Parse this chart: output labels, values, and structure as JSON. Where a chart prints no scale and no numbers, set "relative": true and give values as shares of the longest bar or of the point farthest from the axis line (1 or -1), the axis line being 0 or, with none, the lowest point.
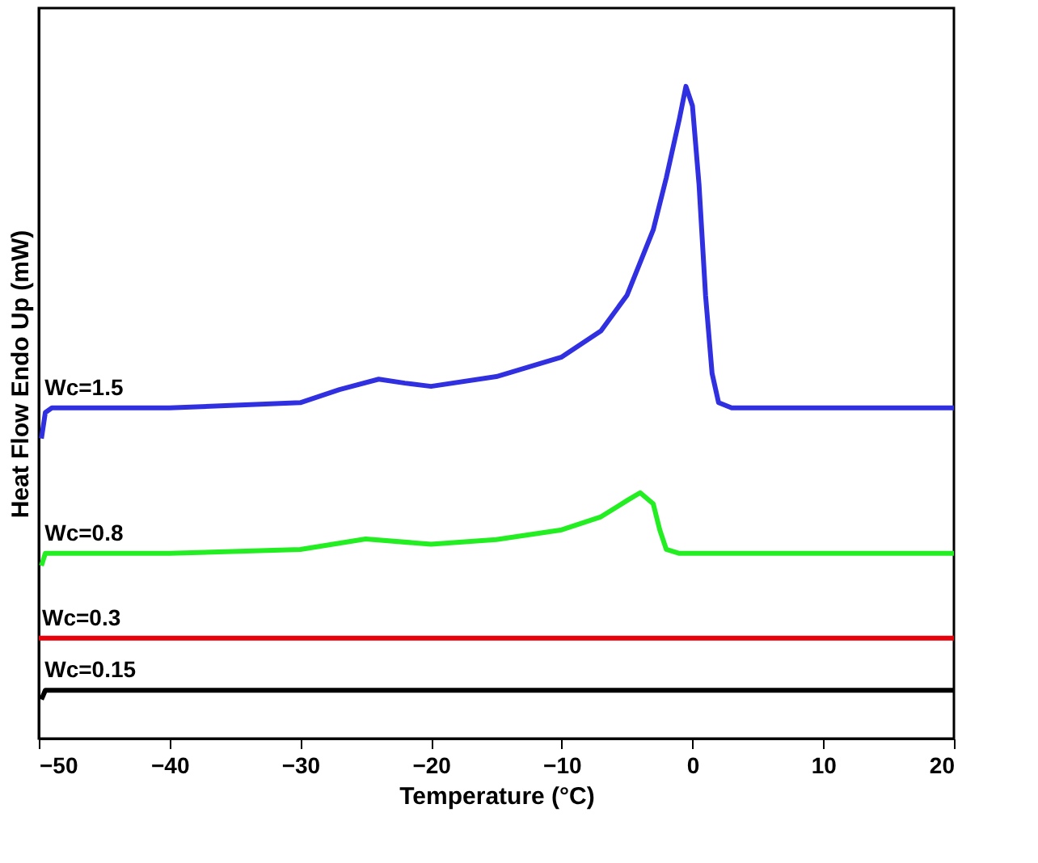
{
  "chart_data": {
    "type": "line",
    "relative": true,
    "xlabel": "Temperature (°C)",
    "ylabel": "Heat Flow Endo Up (mW)",
    "xlim": [
      -50,
      20
    ],
    "xticks": [
      -50,
      -40,
      -30,
      -20,
      -10,
      0,
      10,
      20
    ],
    "legend": false,
    "grid": false,
    "tick_labels": "x",
    "line_style": "solid",
    "series": [
      {
        "name": "Wc=1.5",
        "color": "#3030e0",
        "x": [
          -49.8,
          -49.5,
          -49,
          -40,
          -30,
          -27,
          -24,
          -22,
          -20,
          -15,
          -10,
          -7,
          -5,
          -3,
          -2,
          -1,
          -0.5,
          0,
          0.5,
          1,
          1.5,
          2,
          3,
          10,
          20
        ],
        "values": [
          0.46,
          0.5,
          0.507,
          0.507,
          0.515,
          0.535,
          0.551,
          0.545,
          0.54,
          0.555,
          0.585,
          0.625,
          0.68,
          0.78,
          0.86,
          0.95,
          1.0,
          0.97,
          0.85,
          0.68,
          0.56,
          0.515,
          0.507,
          0.507,
          0.507
        ]
      },
      {
        "name": "Wc=0.8",
        "color": "#22ee22",
        "x": [
          -49.8,
          -49.5,
          -40,
          -30,
          -25,
          -20,
          -15,
          -10,
          -7,
          -5,
          -4,
          -3,
          -2.5,
          -2,
          -1,
          20
        ],
        "values": [
          0.265,
          0.284,
          0.284,
          0.29,
          0.306,
          0.298,
          0.305,
          0.32,
          0.34,
          0.365,
          0.377,
          0.36,
          0.32,
          0.29,
          0.284,
          0.284
        ]
      },
      {
        "name": "Wc=0.3",
        "color": "#e8000b",
        "x": [
          -50,
          20
        ],
        "values": [
          0.154,
          0.154
        ]
      },
      {
        "name": "Wc=0.15",
        "color": "#000000",
        "x": [
          -49.8,
          -49.5,
          20
        ],
        "values": [
          0.06,
          0.074,
          0.074
        ]
      }
    ]
  }
}
